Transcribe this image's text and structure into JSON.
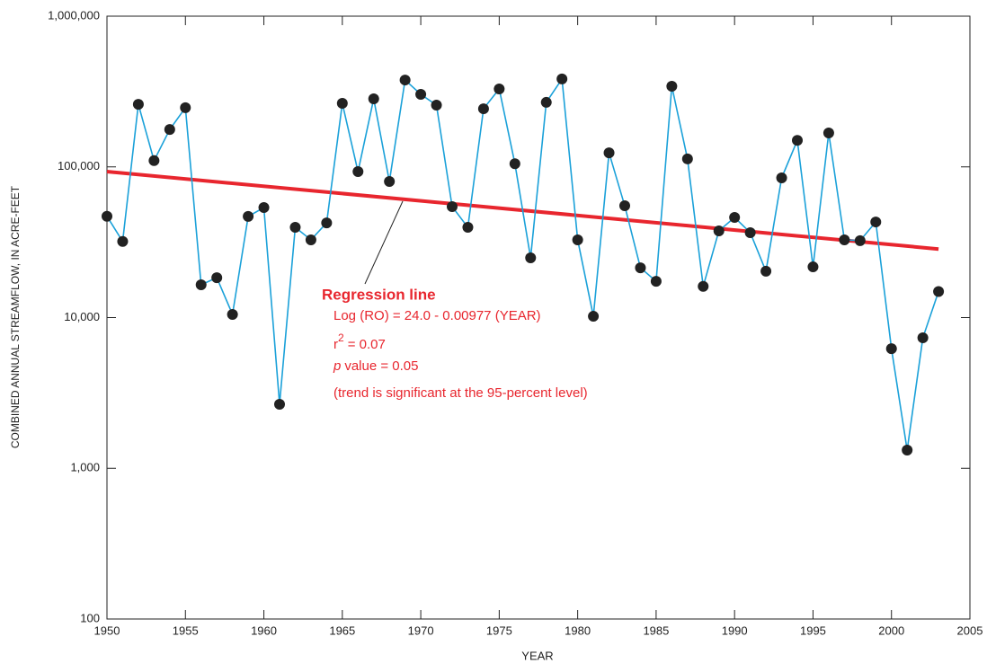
{
  "chart_data": {
    "type": "line",
    "x_label": "YEAR",
    "y_label": "COMBINED ANNUAL STREAMFLOW, IN ACRE-FEET",
    "log_y": true,
    "xlim": [
      1950,
      2005
    ],
    "xticks": [
      1950,
      1955,
      1960,
      1965,
      1970,
      1975,
      1980,
      1985,
      1990,
      1995,
      2000,
      2005
    ],
    "ylim": [
      100,
      1000000
    ],
    "yticks": [
      100,
      {
        "value": 1000,
        "label": "1,000"
      },
      {
        "value": 10000,
        "label": "10,000"
      },
      {
        "value": 100000,
        "label": "100,000"
      },
      {
        "value": 1000000,
        "label": "1,000,000"
      }
    ],
    "x": [
      1950,
      1951,
      1952,
      1953,
      1954,
      1955,
      1956,
      1957,
      1958,
      1959,
      1960,
      1961,
      1962,
      1963,
      1964,
      1965,
      1966,
      1967,
      1968,
      1969,
      1970,
      1971,
      1972,
      1973,
      1974,
      1975,
      1976,
      1977,
      1978,
      1979,
      1980,
      1981,
      1982,
      1983,
      1984,
      1985,
      1986,
      1987,
      1988,
      1989,
      1990,
      1991,
      1992,
      1993,
      1994,
      1995,
      1996,
      1997,
      1998,
      1999,
      2000,
      2001,
      2002,
      2003
    ],
    "series": [
      {
        "color": "#1ba1d9",
        "marker_color": "#222222",
        "values": [
          47000,
          32000,
          260000,
          110000,
          177000,
          247000,
          16500,
          18400,
          10500,
          46900,
          53700,
          2660,
          39700,
          32800,
          42500,
          264000,
          93000,
          283000,
          80000,
          377000,
          303000,
          257000,
          54500,
          39700,
          243000,
          329000,
          105000,
          24900,
          268000,
          383000,
          32800,
          10200,
          124000,
          55200,
          21400,
          17400,
          343000,
          113000,
          16100,
          37600,
          46200,
          36600,
          20300,
          84500,
          150000,
          21700,
          168000,
          32800,
          32400,
          43100,
          6220,
          1320,
          7340,
          14900
        ]
      }
    ],
    "regression": {
      "name": "Regression line",
      "color": "#e8262e",
      "x": [
        1950,
        2003
      ],
      "values": [
        93000,
        28500
      ],
      "equation": "Log (RO) = 24.0 - 0.00977 (YEAR)",
      "r2": {
        "base": "r",
        "sup": "2",
        "text": "= 0.07"
      },
      "p": {
        "italic": "p",
        "text": "value = 0.05"
      },
      "note": "(trend is significant at the 95-percent level)"
    }
  }
}
